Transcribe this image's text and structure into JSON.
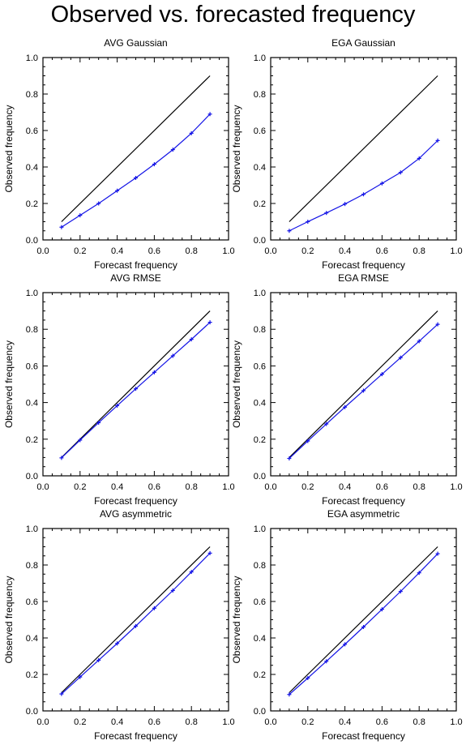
{
  "title": "Observed vs. forecasted frequency",
  "colors": {
    "diagonal": "#000000",
    "series": "#1414e6",
    "axis": "#000000",
    "background": "#ffffff"
  },
  "chart_data": [
    {
      "type": "line",
      "title": "AVG Gaussian",
      "xlabel": "Forecast frequency",
      "ylabel": "Observed frequency",
      "xlim": [
        0.0,
        1.0
      ],
      "ylim": [
        0.0,
        1.0
      ],
      "xticks": [
        "0.0",
        "0.2",
        "0.4",
        "0.6",
        "0.8",
        "1.0"
      ],
      "yticks": [
        "0.0",
        "0.2",
        "0.4",
        "0.6",
        "0.8",
        "1.0"
      ],
      "grid": false,
      "reference": {
        "x": [
          0.1,
          0.9
        ],
        "y": [
          0.1,
          0.9
        ]
      },
      "x": [
        0.1,
        0.2,
        0.3,
        0.4,
        0.5,
        0.6,
        0.7,
        0.8,
        0.9
      ],
      "y": [
        0.07,
        0.135,
        0.2,
        0.27,
        0.34,
        0.415,
        0.495,
        0.585,
        0.69
      ]
    },
    {
      "type": "line",
      "title": "EGA Gaussian",
      "xlabel": "Forecast frequency",
      "ylabel": "Observed frequency",
      "xlim": [
        0.0,
        1.0
      ],
      "ylim": [
        0.0,
        1.0
      ],
      "xticks": [
        "0.0",
        "0.2",
        "0.4",
        "0.6",
        "0.8",
        "1.0"
      ],
      "yticks": [
        "0.0",
        "0.2",
        "0.4",
        "0.6",
        "0.8",
        "1.0"
      ],
      "grid": false,
      "reference": {
        "x": [
          0.1,
          0.9
        ],
        "y": [
          0.1,
          0.9
        ]
      },
      "x": [
        0.1,
        0.2,
        0.3,
        0.4,
        0.5,
        0.6,
        0.7,
        0.8,
        0.9
      ],
      "y": [
        0.05,
        0.1,
        0.148,
        0.197,
        0.25,
        0.31,
        0.37,
        0.447,
        0.545
      ]
    },
    {
      "type": "line",
      "title": "AVG RMSE",
      "xlabel": "Forecast frequency",
      "ylabel": "Observed frequency",
      "xlim": [
        0.0,
        1.0
      ],
      "ylim": [
        0.0,
        1.0
      ],
      "xticks": [
        "0.0",
        "0.2",
        "0.4",
        "0.6",
        "0.8",
        "1.0"
      ],
      "yticks": [
        "0.0",
        "0.2",
        "0.4",
        "0.6",
        "0.8",
        "1.0"
      ],
      "grid": false,
      "reference": {
        "x": [
          0.1,
          0.9
        ],
        "y": [
          0.1,
          0.9
        ]
      },
      "x": [
        0.1,
        0.2,
        0.3,
        0.4,
        0.5,
        0.6,
        0.7,
        0.8,
        0.9
      ],
      "y": [
        0.098,
        0.195,
        0.29,
        0.383,
        0.475,
        0.565,
        0.655,
        0.745,
        0.838
      ]
    },
    {
      "type": "line",
      "title": "EGA RMSE",
      "xlabel": "Forecast frequency",
      "ylabel": "Observed frequency",
      "xlim": [
        0.0,
        1.0
      ],
      "ylim": [
        0.0,
        1.0
      ],
      "xticks": [
        "0.0",
        "0.2",
        "0.4",
        "0.6",
        "0.8",
        "1.0"
      ],
      "yticks": [
        "0.0",
        "0.2",
        "0.4",
        "0.6",
        "0.8",
        "1.0"
      ],
      "grid": false,
      "reference": {
        "x": [
          0.1,
          0.9
        ],
        "y": [
          0.1,
          0.9
        ]
      },
      "x": [
        0.1,
        0.2,
        0.3,
        0.4,
        0.5,
        0.6,
        0.7,
        0.8,
        0.9
      ],
      "y": [
        0.095,
        0.19,
        0.283,
        0.375,
        0.465,
        0.555,
        0.645,
        0.735,
        0.827
      ]
    },
    {
      "type": "line",
      "title": "AVG asymmetric",
      "xlabel": "Forecast frequency",
      "ylabel": "Observed frequency",
      "xlim": [
        0.0,
        1.0
      ],
      "ylim": [
        0.0,
        1.0
      ],
      "xticks": [
        "0.0",
        "0.2",
        "0.4",
        "0.6",
        "0.8",
        "1.0"
      ],
      "yticks": [
        "0.0",
        "0.2",
        "0.4",
        "0.6",
        "0.8",
        "1.0"
      ],
      "grid": false,
      "reference": {
        "x": [
          0.1,
          0.9
        ],
        "y": [
          0.1,
          0.9
        ]
      },
      "x": [
        0.1,
        0.2,
        0.3,
        0.4,
        0.5,
        0.6,
        0.7,
        0.8,
        0.9
      ],
      "y": [
        0.093,
        0.186,
        0.278,
        0.37,
        0.465,
        0.563,
        0.66,
        0.762,
        0.865
      ]
    },
    {
      "type": "line",
      "title": "EGA asymmetric",
      "xlabel": "Forecast frequency",
      "ylabel": "Observed frequency",
      "xlim": [
        0.0,
        1.0
      ],
      "ylim": [
        0.0,
        1.0
      ],
      "xticks": [
        "0.0",
        "0.2",
        "0.4",
        "0.6",
        "0.8",
        "1.0"
      ],
      "yticks": [
        "0.0",
        "0.2",
        "0.4",
        "0.6",
        "0.8",
        "1.0"
      ],
      "grid": false,
      "reference": {
        "x": [
          0.1,
          0.9
        ],
        "y": [
          0.1,
          0.9
        ]
      },
      "x": [
        0.1,
        0.2,
        0.3,
        0.4,
        0.5,
        0.6,
        0.7,
        0.8,
        0.9
      ],
      "y": [
        0.09,
        0.18,
        0.272,
        0.365,
        0.46,
        0.557,
        0.655,
        0.757,
        0.862
      ]
    }
  ]
}
